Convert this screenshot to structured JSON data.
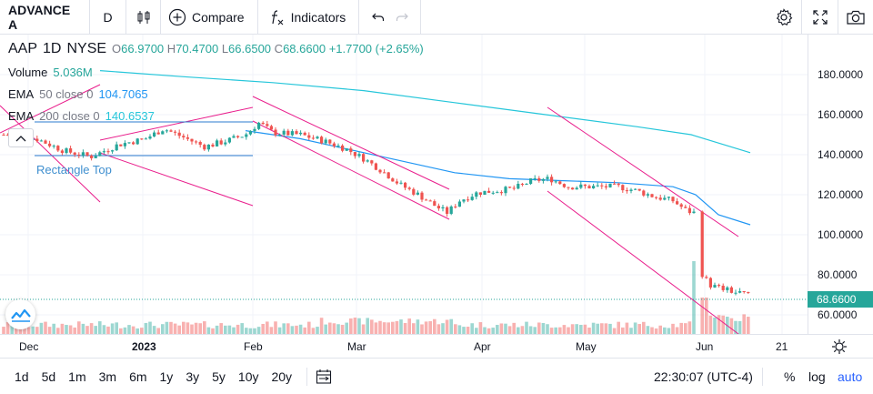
{
  "toolbar": {
    "symbol": "ADVANCE A",
    "interval": "D",
    "compare_label": "Compare",
    "indicators_label": "Indicators"
  },
  "legend": {
    "symbol": "AAP",
    "interval": "1D",
    "exchange": "NYSE",
    "ohlc": {
      "o_key": "O",
      "o_val": "66.9700",
      "h_key": "H",
      "h_val": "70.4700",
      "l_key": "L",
      "l_val": "66.6500",
      "c_key": "C",
      "c_val": "68.6600",
      "change": "+1.7700 (+2.65%)"
    },
    "volume": {
      "label": "Volume",
      "value": "5.036M"
    },
    "ema50": {
      "label": "EMA",
      "params": "50 close 0",
      "value": "104.7065",
      "color": "#2196f3"
    },
    "ema200": {
      "label": "EMA",
      "params": "200 close 0",
      "value": "140.6537",
      "color": "#26c6da"
    }
  },
  "drawings": {
    "rectangle_label": "Rectangle Top"
  },
  "price_scale": {
    "ticks": [
      "180.0000",
      "160.0000",
      "140.0000",
      "120.0000",
      "100.0000",
      "80.0000",
      "60.0000"
    ],
    "last_price": "68.6600"
  },
  "time_axis": {
    "labels": [
      {
        "text": "Dec",
        "bold": false
      },
      {
        "text": "2023",
        "bold": true
      },
      {
        "text": "Feb",
        "bold": false
      },
      {
        "text": "Mar",
        "bold": false
      },
      {
        "text": "Apr",
        "bold": false
      },
      {
        "text": "May",
        "bold": false
      },
      {
        "text": "Jun",
        "bold": false
      },
      {
        "text": "21",
        "bold": false
      }
    ]
  },
  "bottom_bar": {
    "ranges": [
      "1d",
      "5d",
      "1m",
      "3m",
      "6m",
      "1y",
      "3y",
      "5y",
      "10y",
      "20y"
    ],
    "time": "22:30:07 (UTC-4)",
    "percent": "%",
    "log": "log",
    "auto": "auto"
  },
  "colors": {
    "up": "#26a69a",
    "down": "#ef5350",
    "ema50": "#2196f3",
    "ema200": "#26c6da",
    "trendline": "#e91e8c",
    "rectangle": "#2b7bcf",
    "accent": "#2962ff"
  },
  "icons": [
    "bar-chart-type-icon",
    "plus-circle-icon",
    "fx-icon",
    "undo-icon",
    "redo-icon",
    "gear-icon",
    "fullscreen-icon",
    "camera-icon",
    "collapse-chevron-icon",
    "tradingview-logo-icon",
    "date-range-icon"
  ]
}
